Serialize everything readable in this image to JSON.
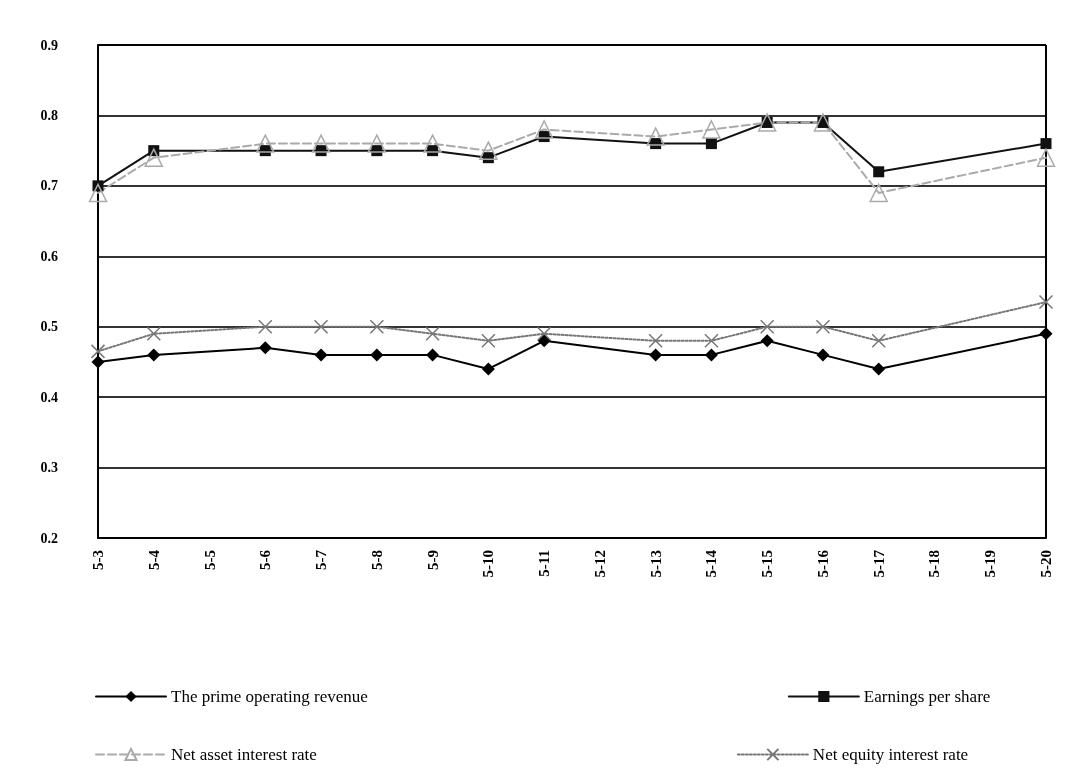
{
  "chart_data": {
    "type": "line",
    "categories": [
      "5-3",
      "5-4",
      "5-5",
      "5-6",
      "5-7",
      "5-8",
      "5-9",
      "5-10",
      "5-11",
      "5-12",
      "5-13",
      "5-14",
      "5-15",
      "5-16",
      "5-17",
      "5-18",
      "5-19",
      "5-20"
    ],
    "series": [
      {
        "name": "The prime operating revenue",
        "color": "#000000",
        "marker": "diamond",
        "line_style": "solid",
        "values": [
          0.45,
          0.46,
          null,
          0.47,
          0.46,
          0.46,
          0.46,
          0.44,
          0.48,
          null,
          0.46,
          0.46,
          0.48,
          0.46,
          0.44,
          null,
          null,
          0.49
        ]
      },
      {
        "name": "Earnings per share",
        "color": "#111111",
        "marker": "square",
        "line_style": "solid",
        "values": [
          0.7,
          0.75,
          null,
          0.75,
          0.75,
          0.75,
          0.75,
          0.74,
          0.77,
          null,
          0.76,
          0.76,
          0.79,
          0.79,
          0.72,
          null,
          null,
          0.76
        ]
      },
      {
        "name": "Net asset interest rate",
        "color": "#aaaaaa",
        "marker": "triangle",
        "line_style": "dashed",
        "values": [
          0.69,
          0.74,
          null,
          0.76,
          0.76,
          0.76,
          0.76,
          0.75,
          0.78,
          null,
          0.77,
          0.78,
          0.79,
          0.79,
          0.69,
          null,
          null,
          0.74
        ]
      },
      {
        "name": "Net equity interest rate",
        "color": "#777777",
        "marker": "cross",
        "line_style": "dotted",
        "values": [
          0.465,
          0.49,
          null,
          0.5,
          0.5,
          0.5,
          0.49,
          0.48,
          0.49,
          null,
          0.48,
          0.48,
          0.5,
          0.5,
          0.48,
          null,
          null,
          0.535
        ]
      }
    ],
    "ylim": [
      0.2,
      0.9
    ],
    "yticks": [
      0.2,
      0.3,
      0.4,
      0.5,
      0.6,
      0.7,
      0.8,
      0.9
    ],
    "grid": "y",
    "legend": "bottom"
  }
}
